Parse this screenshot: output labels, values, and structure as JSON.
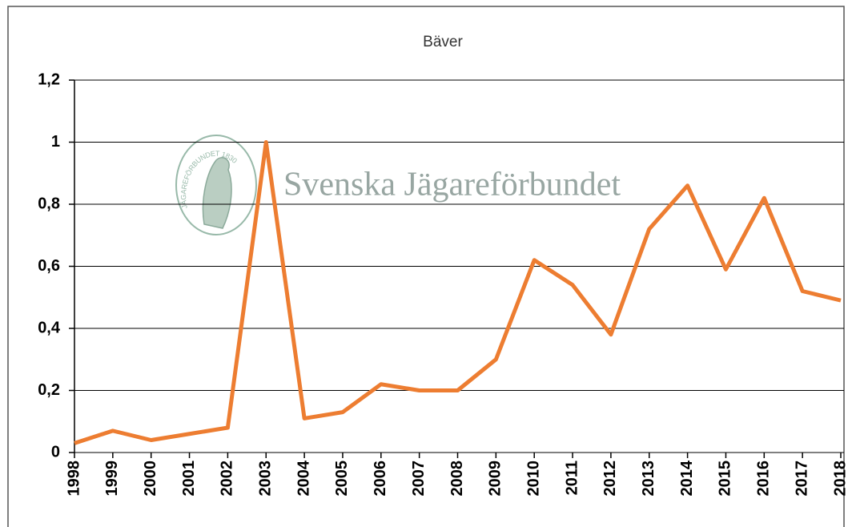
{
  "chart_data": {
    "type": "line",
    "title": "Bäver",
    "annotations": [
      "Svenska Jägareförbundet",
      "JÄGAREFÖRBUNDET 1830"
    ],
    "categories": [
      "1998",
      "1999",
      "2000",
      "2001",
      "2002",
      "2003",
      "2004",
      "2005",
      "2006",
      "2007",
      "2008",
      "2009",
      "2010",
      "2011",
      "2012",
      "2013",
      "2014",
      "2015",
      "2016",
      "2017",
      "2018"
    ],
    "series": [
      {
        "name": "Bäver",
        "color": "#ed7d31",
        "values": [
          0.03,
          0.07,
          0.04,
          0.06,
          0.08,
          1.0,
          0.11,
          0.13,
          0.22,
          0.2,
          0.2,
          0.3,
          0.62,
          0.54,
          0.38,
          0.72,
          0.86,
          0.59,
          0.82,
          0.52,
          0.49
        ]
      }
    ],
    "ylim": [
      0,
      1.2
    ],
    "yticks": [
      0,
      {
        "value": 0.2,
        "label": "0,2"
      },
      {
        "value": 0.4,
        "label": "0,4"
      },
      {
        "value": 0.6,
        "label": "0,6"
      },
      {
        "value": 0.8,
        "label": "0,8"
      },
      1,
      {
        "value": 1.2,
        "label": "1,2"
      }
    ],
    "grid": true
  }
}
